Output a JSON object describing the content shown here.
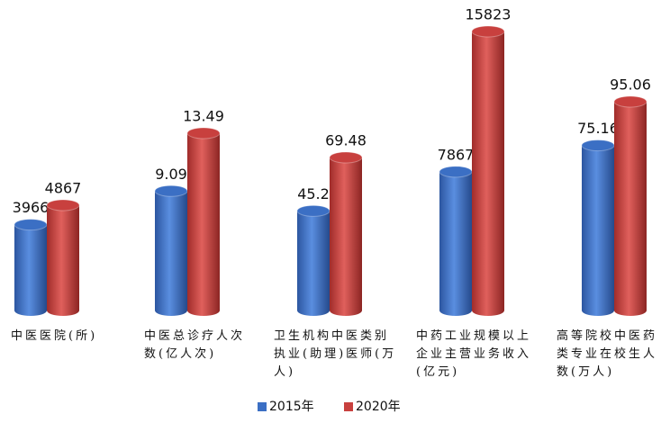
{
  "chart_data": {
    "type": "bar",
    "categories": [
      "中医医院(所)",
      "中医总诊疗人次数(亿人次)",
      "卫生机构中医类别执业(助理)医师(万人)",
      "中药工业规模以上企业主营业务收入(亿元)",
      "高等院校中医药类专业在校生人数(万人)"
    ],
    "series": [
      {
        "name": "2015年",
        "color": "#3b6fc4",
        "values": [
          3966,
          9.09,
          45.2,
          7867,
          75.16
        ]
      },
      {
        "name": "2020年",
        "color": "#c8403e",
        "values": [
          4867,
          13.49,
          69.48,
          15823,
          95.06
        ]
      }
    ],
    "legend": "bottom"
  }
}
